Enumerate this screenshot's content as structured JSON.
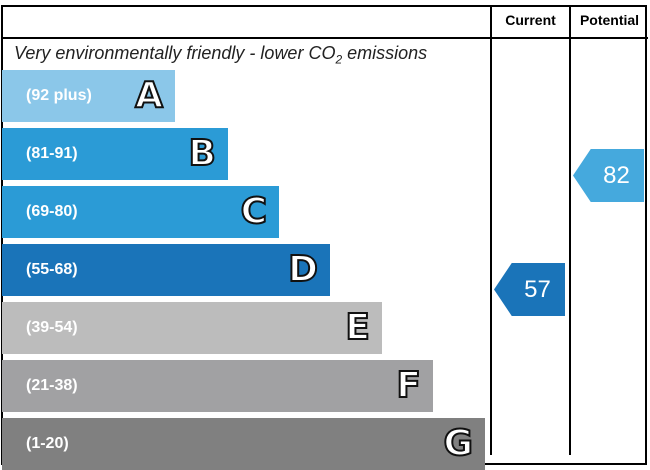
{
  "headers": {
    "current": "Current",
    "potential": "Potential"
  },
  "top_text": {
    "main": "Very environmentally friendly - lower CO",
    "sub": "2",
    "tail": " emissions"
  },
  "chart_data": {
    "type": "bar",
    "bands": [
      {
        "letter": "A",
        "range": "(92 plus)",
        "color": "#8bc7e9"
      },
      {
        "letter": "B",
        "range": "(81-91)",
        "color": "#2b9bd6"
      },
      {
        "letter": "C",
        "range": "(69-80)",
        "color": "#2b9bd6"
      },
      {
        "letter": "D",
        "range": "(55-68)",
        "color": "#1a74b9"
      },
      {
        "letter": "E",
        "range": "(39-54)",
        "color": "#bcbcbc"
      },
      {
        "letter": "F",
        "range": "(21-38)",
        "color": "#a1a1a3"
      },
      {
        "letter": "G",
        "range": "(1-20)",
        "color": "#808080"
      }
    ],
    "current": {
      "value": "57",
      "band": "D",
      "color": "#1a74b9"
    },
    "potential": {
      "value": "82",
      "band": "B",
      "color": "#45a9dd"
    }
  }
}
